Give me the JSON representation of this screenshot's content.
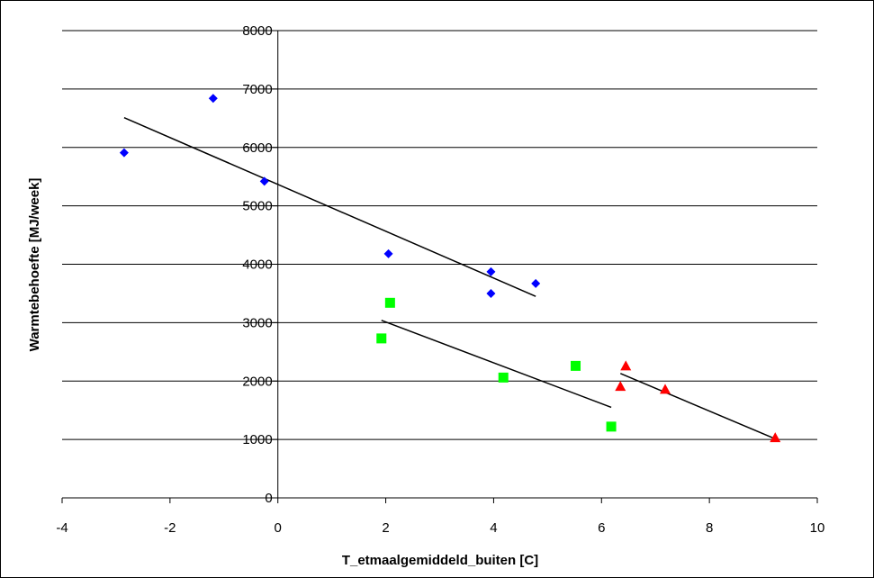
{
  "chart_data": {
    "type": "scatter",
    "title": "",
    "xlabel": "T_etmaalgemiddeld_buiten [C]",
    "ylabel": "Warmtebehoefte [MJ/week]",
    "xlim": [
      -4,
      10
    ],
    "ylim": [
      0,
      8000
    ],
    "x_ticks": [
      -4,
      -2,
      0,
      2,
      4,
      6,
      8,
      10
    ],
    "y_ticks": [
      0,
      1000,
      2000,
      3000,
      4000,
      5000,
      6000,
      7000,
      8000
    ],
    "grid": "horizontal",
    "legend": "none",
    "series": [
      {
        "marker": "diamond",
        "color": "#0000ff",
        "points": [
          [
            -2.85,
            5910
          ],
          [
            -1.2,
            6840
          ],
          [
            -0.25,
            5420
          ],
          [
            2.05,
            4180
          ],
          [
            3.95,
            3870
          ],
          [
            3.95,
            3500
          ],
          [
            4.78,
            3670
          ]
        ],
        "trendline": [
          [
            -2.85,
            6510
          ],
          [
            4.78,
            3450
          ]
        ]
      },
      {
        "marker": "square",
        "color": "#00ff00",
        "points": [
          [
            1.92,
            2730
          ],
          [
            2.08,
            3340
          ],
          [
            4.18,
            2060
          ],
          [
            5.52,
            2260
          ],
          [
            6.18,
            1220
          ]
        ],
        "trendline": [
          [
            1.92,
            3040
          ],
          [
            6.18,
            1550
          ]
        ]
      },
      {
        "marker": "triangle",
        "color": "#ff0000",
        "points": [
          [
            6.35,
            1910
          ],
          [
            6.45,
            2260
          ],
          [
            7.18,
            1860
          ],
          [
            9.22,
            1030
          ]
        ],
        "trendline": [
          [
            6.35,
            2130
          ],
          [
            9.22,
            1010
          ]
        ]
      }
    ]
  }
}
